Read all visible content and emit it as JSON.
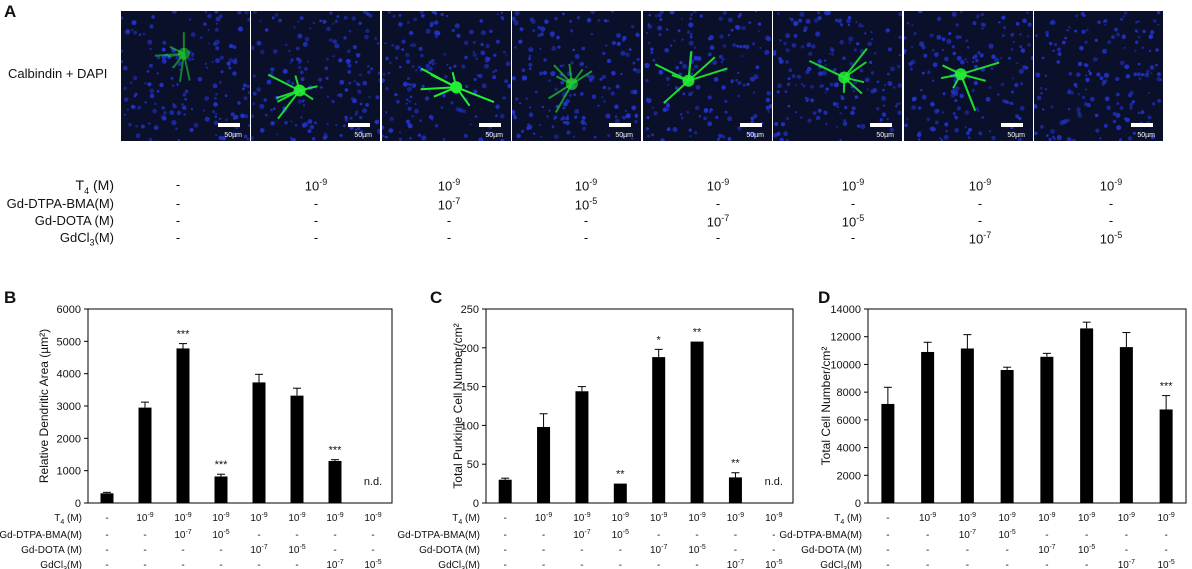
{
  "panel_a": {
    "label": "A",
    "stain_label": "Calbindin + DAPI",
    "scale_label": "50µm",
    "rows": [
      {
        "name": "T4 (M)",
        "values": [
          "-",
          "10-9",
          "10-9",
          "10-9",
          "10-9",
          "10-9",
          "10-9",
          "10-9"
        ]
      },
      {
        "name": "Gd-DTPA-BMA(M)",
        "values": [
          "-",
          "-",
          "10-7",
          "10-5",
          "-",
          "-",
          "-",
          "-"
        ]
      },
      {
        "name": "Gd-DOTA (M)",
        "values": [
          "-",
          "-",
          "-",
          "-",
          "10-7",
          "10-5",
          "-",
          "-"
        ]
      },
      {
        "name": "GdCl3(M)",
        "values": [
          "-",
          "-",
          "-",
          "-",
          "-",
          "-",
          "10-7",
          "10-5"
        ]
      }
    ]
  },
  "chart_data": [
    {
      "panel": "B",
      "type": "bar",
      "ylabel": "Relative Dendritic Area (µm²)",
      "ylim": [
        0,
        6000
      ],
      "yticks": [
        0,
        1000,
        2000,
        3000,
        4000,
        5000,
        6000
      ],
      "values": [
        300,
        2950,
        4780,
        820,
        3730,
        3320,
        1300,
        0
      ],
      "errors": [
        30,
        170,
        150,
        70,
        250,
        230,
        40,
        0
      ],
      "annotations": [
        "",
        "",
        "***",
        "***",
        "",
        "",
        "***",
        "n.d."
      ]
    },
    {
      "panel": "C",
      "type": "bar",
      "ylabel": "Total Purkinje Cell Number/cm²",
      "ylim": [
        0,
        250
      ],
      "yticks": [
        0,
        50,
        100,
        150,
        200,
        250
      ],
      "values": [
        30,
        98,
        144,
        25,
        188,
        208,
        33,
        0
      ],
      "errors": [
        2,
        17,
        6,
        0,
        10,
        0,
        6,
        0
      ],
      "annotations": [
        "",
        "",
        "",
        "**",
        "*",
        "**",
        "**",
        "n.d."
      ]
    },
    {
      "panel": "D",
      "type": "bar",
      "ylabel": "Total Cell Number/cm²",
      "ylim": [
        0,
        14000
      ],
      "yticks": [
        0,
        2000,
        4000,
        6000,
        8000,
        10000,
        12000,
        14000
      ],
      "values": [
        7150,
        10900,
        11150,
        9600,
        10550,
        12600,
        11250,
        6750
      ],
      "errors": [
        1200,
        700,
        1000,
        200,
        250,
        450,
        1050,
        1000
      ],
      "annotations": [
        "",
        "",
        "",
        "",
        "",
        "",
        "",
        "***"
      ]
    }
  ],
  "conditions": {
    "row_labels": [
      "T4 (M)",
      "Gd-DTPA-BMA(M)",
      "Gd-DOTA (M)",
      "GdCl3(M)"
    ],
    "rows": [
      [
        "-",
        "10-9",
        "10-9",
        "10-9",
        "10-9",
        "10-9",
        "10-9",
        "10-9"
      ],
      [
        "-",
        "-",
        "10-7",
        "10-5",
        "-",
        "-",
        "-",
        "-"
      ],
      [
        "-",
        "-",
        "-",
        "-",
        "10-7",
        "10-5",
        "-",
        "-"
      ],
      [
        "-",
        "-",
        "-",
        "-",
        "-",
        "-",
        "10-7",
        "10-5"
      ]
    ]
  },
  "colors": {
    "bar": "#000000",
    "cells_green": "#22ee33",
    "nuclei_blue": "#2233cc",
    "background": "#0a0f2a"
  }
}
